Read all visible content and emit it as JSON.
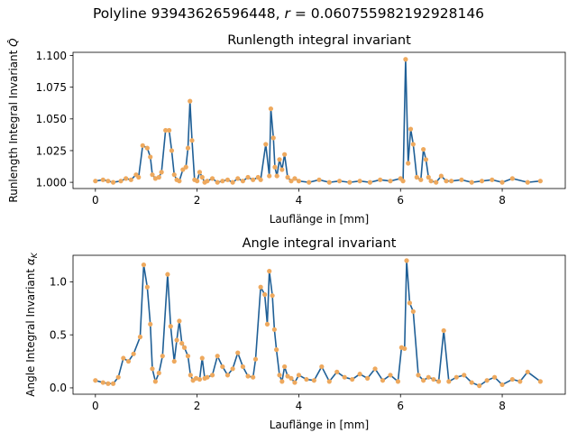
{
  "suptitle": "Polyline 93943626596448, r = 0.060755982192928146",
  "suptitle_prefix": "Polyline 93943626596448, ",
  "suptitle_r_symbol": "r",
  "suptitle_r_value": " = 0.060755982192928146",
  "colors": {
    "line": "#1f5f96",
    "marker": "#eea95e"
  },
  "chart_data": [
    {
      "type": "line",
      "title": "Runlength integral invariant",
      "xlabel": "Lauflänge in [mm]",
      "ylabel": "Runlength Integral Invariant Q̂",
      "ylabel_text": "Runlength Integral Invariant ",
      "ylabel_symbol": "Q̂",
      "xlim": [
        -0.44,
        9.24
      ],
      "ylim": [
        0.9951,
        1.1025
      ],
      "xticks": [
        0,
        2,
        4,
        6,
        8
      ],
      "yticks": [
        1.0,
        1.025,
        1.05,
        1.075,
        1.1
      ],
      "ytick_labels": [
        "1.000",
        "1.025",
        "1.050",
        "1.075",
        "1.100"
      ],
      "series": [
        {
          "name": "runlength",
          "x": [
            0.0,
            0.15,
            0.25,
            0.35,
            0.5,
            0.6,
            0.7,
            0.8,
            0.85,
            0.93,
            1.02,
            1.08,
            1.12,
            1.18,
            1.25,
            1.3,
            1.38,
            1.45,
            1.5,
            1.55,
            1.6,
            1.65,
            1.72,
            1.78,
            1.82,
            1.86,
            1.9,
            1.95,
            2.0,
            2.05,
            2.1,
            2.15,
            2.2,
            2.3,
            2.4,
            2.5,
            2.6,
            2.7,
            2.8,
            2.9,
            3.0,
            3.1,
            3.2,
            3.25,
            3.35,
            3.42,
            3.45,
            3.5,
            3.53,
            3.57,
            3.62,
            3.67,
            3.72,
            3.78,
            3.85,
            3.92,
            4.0,
            4.2,
            4.4,
            4.6,
            4.8,
            5.0,
            5.2,
            5.4,
            5.6,
            5.8,
            6.0,
            6.05,
            6.1,
            6.15,
            6.2,
            6.25,
            6.32,
            6.4,
            6.45,
            6.5,
            6.55,
            6.6,
            6.7,
            6.8,
            6.9,
            7.0,
            7.2,
            7.4,
            7.6,
            7.8,
            8.0,
            8.2,
            8.5,
            8.75
          ],
          "y": [
            1.001,
            1.002,
            1.001,
            1.0,
            1.001,
            1.003,
            1.002,
            1.006,
            1.004,
            1.029,
            1.027,
            1.02,
            1.006,
            1.003,
            1.004,
            1.008,
            1.041,
            1.041,
            1.025,
            1.006,
            1.002,
            1.001,
            1.01,
            1.012,
            1.027,
            1.064,
            1.033,
            1.002,
            1.001,
            1.008,
            1.004,
            1.0,
            1.001,
            1.003,
            1.0,
            1.001,
            1.002,
            1.0,
            1.003,
            1.001,
            1.004,
            1.002,
            1.004,
            1.002,
            1.03,
            1.005,
            1.058,
            1.035,
            1.012,
            1.005,
            1.018,
            1.01,
            1.022,
            1.004,
            1.001,
            1.003,
            1.001,
            1.0,
            1.002,
            1.0,
            1.001,
            1.0,
            1.001,
            1.0,
            1.002,
            1.001,
            1.003,
            1.001,
            1.097,
            1.015,
            1.042,
            1.03,
            1.004,
            1.002,
            1.026,
            1.018,
            1.004,
            1.001,
            1.0,
            1.005,
            1.001,
            1.001,
            1.002,
            1.0,
            1.001,
            1.002,
            1.0,
            1.003,
            1.0,
            1.001
          ]
        }
      ]
    },
    {
      "type": "line",
      "title": "Angle integral invariant",
      "xlabel": "Lauflänge in [mm]",
      "ylabel": "Angle Integral Invariant αK",
      "ylabel_text": "Angle Integral Invariant ",
      "ylabel_symbol": "α",
      "ylabel_sub": "K",
      "xlim": [
        -0.44,
        9.24
      ],
      "ylim": [
        -0.06,
        1.25
      ],
      "xticks": [
        0,
        2,
        4,
        6,
        8
      ],
      "yticks": [
        0.0,
        0.5,
        1.0
      ],
      "ytick_labels": [
        "0.0",
        "0.5",
        "1.0"
      ],
      "series": [
        {
          "name": "angle",
          "x": [
            0.0,
            0.15,
            0.25,
            0.35,
            0.45,
            0.55,
            0.65,
            0.75,
            0.88,
            0.95,
            1.02,
            1.08,
            1.12,
            1.18,
            1.25,
            1.32,
            1.42,
            1.48,
            1.55,
            1.6,
            1.65,
            1.7,
            1.75,
            1.82,
            1.87,
            1.92,
            1.98,
            2.05,
            2.1,
            2.15,
            2.2,
            2.3,
            2.4,
            2.5,
            2.6,
            2.7,
            2.8,
            2.9,
            3.0,
            3.1,
            3.15,
            3.25,
            3.33,
            3.38,
            3.42,
            3.48,
            3.52,
            3.56,
            3.62,
            3.67,
            3.72,
            3.78,
            3.85,
            3.92,
            4.0,
            4.15,
            4.3,
            4.45,
            4.6,
            4.75,
            4.9,
            5.05,
            5.2,
            5.35,
            5.5,
            5.65,
            5.8,
            5.95,
            6.02,
            6.08,
            6.12,
            6.18,
            6.25,
            6.35,
            6.45,
            6.55,
            6.65,
            6.75,
            6.85,
            6.95,
            7.1,
            7.25,
            7.4,
            7.55,
            7.7,
            7.85,
            8.0,
            8.2,
            8.35,
            8.5,
            8.75
          ],
          "y": [
            0.07,
            0.05,
            0.04,
            0.04,
            0.1,
            0.28,
            0.25,
            0.32,
            0.48,
            1.16,
            0.95,
            0.6,
            0.18,
            0.06,
            0.14,
            0.3,
            1.07,
            0.58,
            0.25,
            0.45,
            0.63,
            0.42,
            0.38,
            0.3,
            0.12,
            0.07,
            0.09,
            0.08,
            0.28,
            0.09,
            0.1,
            0.12,
            0.3,
            0.2,
            0.12,
            0.18,
            0.33,
            0.2,
            0.11,
            0.1,
            0.27,
            0.95,
            0.88,
            0.6,
            1.1,
            0.87,
            0.55,
            0.36,
            0.12,
            0.06,
            0.2,
            0.11,
            0.09,
            0.05,
            0.12,
            0.08,
            0.07,
            0.2,
            0.06,
            0.15,
            0.1,
            0.08,
            0.13,
            0.09,
            0.18,
            0.07,
            0.12,
            0.06,
            0.38,
            0.37,
            1.2,
            0.8,
            0.72,
            0.12,
            0.07,
            0.1,
            0.08,
            0.06,
            0.54,
            0.06,
            0.1,
            0.12,
            0.05,
            0.02,
            0.07,
            0.1,
            0.03,
            0.08,
            0.06,
            0.15,
            0.06
          ]
        }
      ]
    }
  ]
}
